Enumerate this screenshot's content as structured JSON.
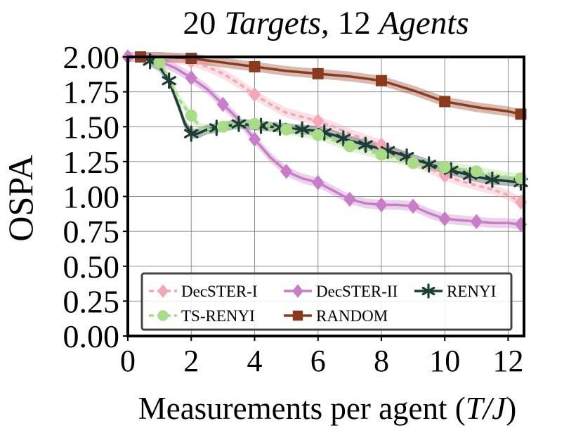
{
  "chart_data": {
    "type": "line",
    "title": {
      "n_targets": "20",
      "targets_word": "Targets",
      "sep": ",",
      "n_agents": "12",
      "agents_word": "Agents"
    },
    "xlabel": "Measurements per agent (",
    "xlabel_math": "T/J",
    "xlabel_close": ")",
    "ylabel": "OSPA",
    "xlim": [
      0,
      12.5
    ],
    "ylim": [
      0,
      2
    ],
    "xticks": [
      "0",
      "2",
      "4",
      "6",
      "8",
      "10",
      "12"
    ],
    "yticks": [
      "0.00",
      "0.25",
      "0.50",
      "0.75",
      "1.00",
      "1.25",
      "1.50",
      "1.75",
      "2.00"
    ],
    "grid": true,
    "legend_position": "bottom-center",
    "series": [
      {
        "name": "DecSTER-I",
        "color": "#f4a7b4",
        "marker": "diamond",
        "dashed": true,
        "x": [
          0,
          0.5,
          1,
          1.5,
          2,
          2.5,
          3,
          3.5,
          4,
          4.5,
          5,
          5.5,
          6,
          6.5,
          7,
          7.5,
          8,
          8.5,
          9,
          9.5,
          10,
          10.5,
          11,
          11.5,
          12,
          12.4
        ],
        "y": [
          2.0,
          2.0,
          2.0,
          1.99,
          1.97,
          1.93,
          1.88,
          1.81,
          1.73,
          1.66,
          1.6,
          1.57,
          1.54,
          1.5,
          1.45,
          1.41,
          1.37,
          1.31,
          1.25,
          1.2,
          1.15,
          1.11,
          1.08,
          1.05,
          1.01,
          0.96
        ],
        "mark_x": [
          0,
          2,
          4,
          6,
          8,
          10,
          12.4
        ]
      },
      {
        "name": "DecSTER-II",
        "color": "#c77dc7",
        "marker": "diamond",
        "dashed": false,
        "x": [
          0,
          0.5,
          1,
          1.5,
          2,
          2.5,
          3,
          3.5,
          4,
          4.5,
          5,
          5.5,
          6,
          6.5,
          7,
          7.5,
          8,
          8.5,
          9,
          9.5,
          10,
          10.5,
          11,
          11.5,
          12,
          12.4
        ],
        "y": [
          2.0,
          2.0,
          1.97,
          1.92,
          1.85,
          1.77,
          1.66,
          1.55,
          1.41,
          1.28,
          1.18,
          1.13,
          1.1,
          1.04,
          0.98,
          0.95,
          0.94,
          0.94,
          0.93,
          0.88,
          0.84,
          0.83,
          0.82,
          0.81,
          0.81,
          0.8
        ],
        "mark_x": [
          0,
          2,
          3,
          4,
          5,
          6,
          7,
          8,
          9,
          10,
          11,
          12.4
        ]
      },
      {
        "name": "RENYI",
        "color": "#1c3d36",
        "marker": "star",
        "dashed": false,
        "x": [
          0.7,
          1.0,
          1.3,
          1.6,
          1.8,
          2.0,
          2.2,
          2.5,
          3.0,
          3.5,
          4.0,
          4.5,
          5.0,
          5.5,
          6.0,
          6.5,
          7.0,
          7.5,
          8.0,
          8.5,
          9.0,
          9.5,
          10.0,
          10.5,
          11.0,
          11.5,
          12.0,
          12.4
        ],
        "y": [
          1.97,
          1.93,
          1.83,
          1.65,
          1.52,
          1.45,
          1.45,
          1.48,
          1.5,
          1.52,
          1.51,
          1.5,
          1.49,
          1.48,
          1.47,
          1.44,
          1.4,
          1.37,
          1.34,
          1.31,
          1.27,
          1.23,
          1.2,
          1.17,
          1.14,
          1.12,
          1.11,
          1.1
        ],
        "mark_x": [
          0.7,
          1.3,
          2.0,
          2.8,
          3.5,
          4.2,
          4.8,
          5.5,
          6.2,
          6.8,
          7.5,
          8.2,
          8.8,
          9.5,
          10.2,
          10.8,
          11.5,
          12.4
        ]
      },
      {
        "name": "TS-RENYI",
        "color": "#a8dc86",
        "marker": "circle",
        "dashed": true,
        "x": [
          1.0,
          1.3,
          1.6,
          2.0,
          2.3,
          2.6,
          3.0,
          3.5,
          4.0,
          4.5,
          5.0,
          5.5,
          6.0,
          6.5,
          7.0,
          7.5,
          8.0,
          8.5,
          9.0,
          9.5,
          10.0,
          10.5,
          11.0,
          11.5,
          12.0,
          12.4
        ],
        "y": [
          1.96,
          1.85,
          1.7,
          1.58,
          1.49,
          1.48,
          1.5,
          1.52,
          1.52,
          1.5,
          1.48,
          1.46,
          1.44,
          1.4,
          1.36,
          1.33,
          1.3,
          1.27,
          1.24,
          1.22,
          1.21,
          1.2,
          1.18,
          1.16,
          1.14,
          1.13
        ],
        "mark_x": [
          1.0,
          2.0,
          3.0,
          4.0,
          5.0,
          6.0,
          7.0,
          8.0,
          9.0,
          10.0,
          11.0,
          12.4
        ]
      },
      {
        "name": "RANDOM",
        "color": "#8b3a1e",
        "marker": "square",
        "dashed": false,
        "x": [
          0.4,
          1,
          2,
          3,
          4,
          5,
          6,
          7,
          8,
          9,
          10,
          11,
          12,
          12.4
        ],
        "y": [
          2.0,
          2.0,
          1.99,
          1.96,
          1.93,
          1.9,
          1.88,
          1.86,
          1.83,
          1.76,
          1.68,
          1.64,
          1.61,
          1.59
        ],
        "mark_x": [
          0.4,
          2,
          4,
          6,
          8,
          10,
          12.4
        ]
      }
    ]
  }
}
